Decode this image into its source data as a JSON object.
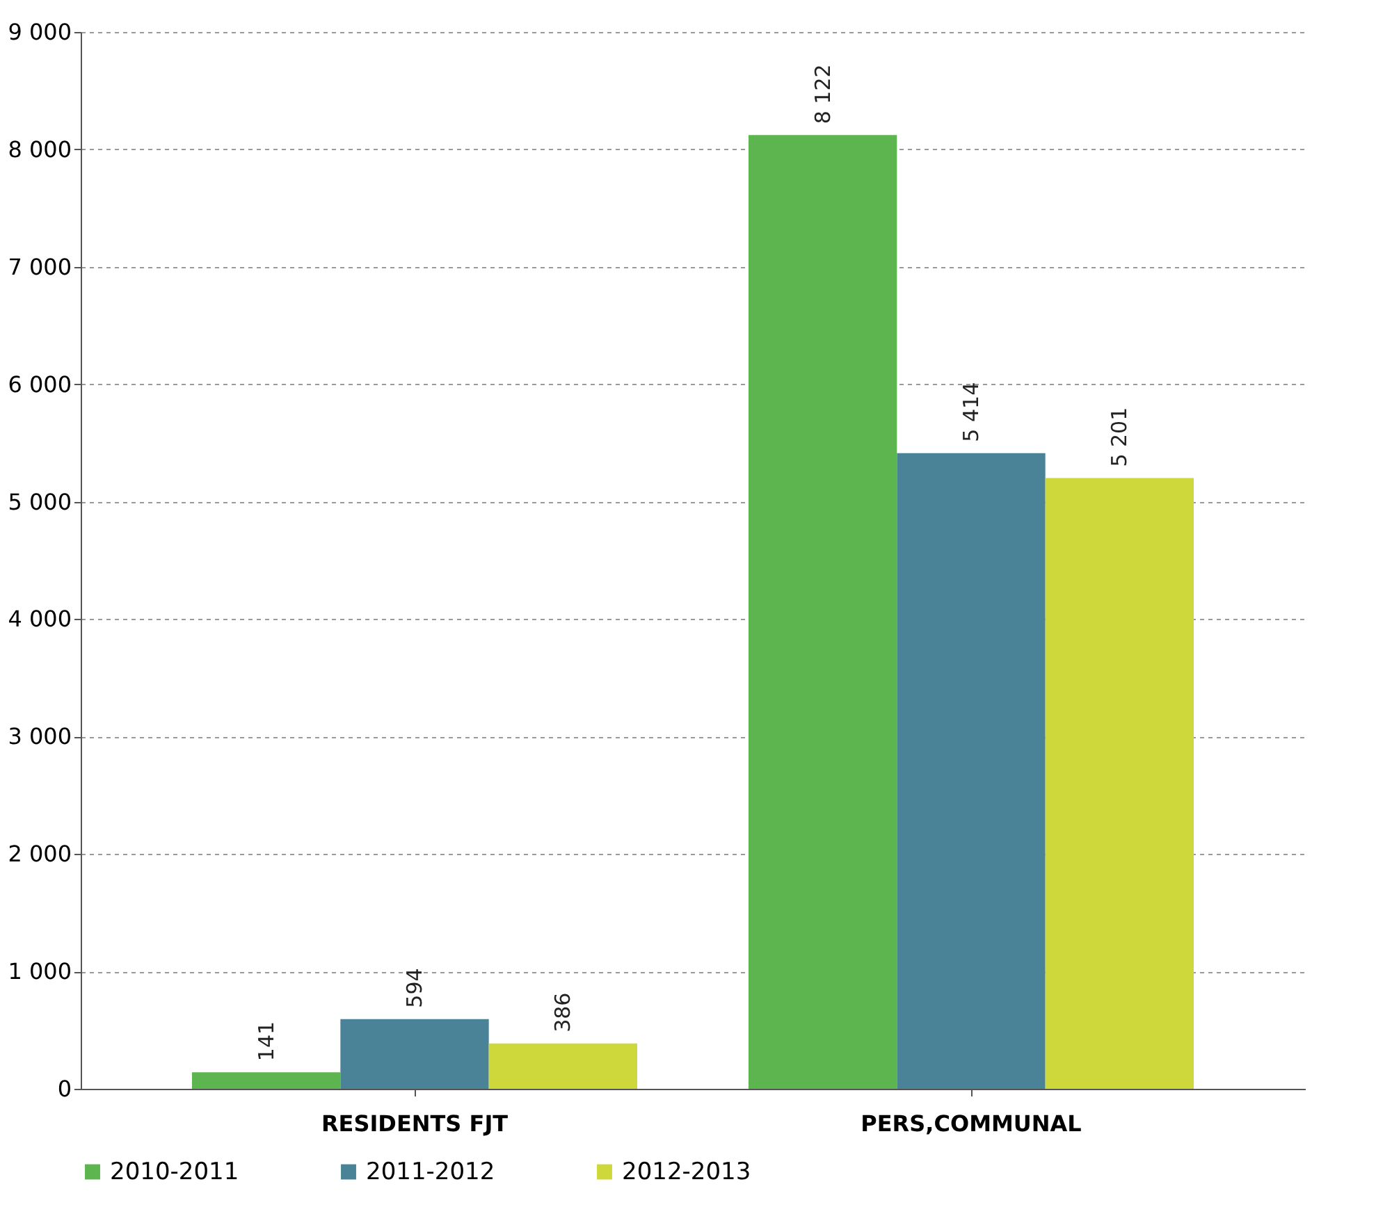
{
  "chart_data": {
    "type": "bar",
    "categories": [
      "RESIDENTS FJT",
      "PERS,COMMUNAL"
    ],
    "series": [
      {
        "name": "2010-2011",
        "color": "#5cb54e",
        "values": [
          141,
          8122
        ],
        "value_labels": [
          "141",
          "8 122"
        ]
      },
      {
        "name": "2011-2012",
        "color": "#4a8397",
        "values": [
          594,
          5414
        ],
        "value_labels": [
          "594",
          "5 414"
        ]
      },
      {
        "name": "2012-2013",
        "color": "#cfd83a",
        "values": [
          386,
          5201
        ],
        "value_labels": [
          "386",
          "5 201"
        ]
      }
    ],
    "ylim": [
      0,
      9000
    ],
    "yticks": [
      0,
      {
        "value": 1000,
        "label": "1 000"
      },
      {
        "value": 2000,
        "label": "2 000"
      },
      {
        "value": 3000,
        "label": "3 000"
      },
      {
        "value": 4000,
        "label": "4 000"
      },
      {
        "value": 5000,
        "label": "5 000"
      },
      {
        "value": 6000,
        "label": "6 000"
      },
      {
        "value": 7000,
        "label": "7 000"
      },
      {
        "value": 8000,
        "label": "8 000"
      },
      {
        "value": 9000,
        "label": "9 000"
      }
    ],
    "grid": "y",
    "legend": "bottom"
  }
}
